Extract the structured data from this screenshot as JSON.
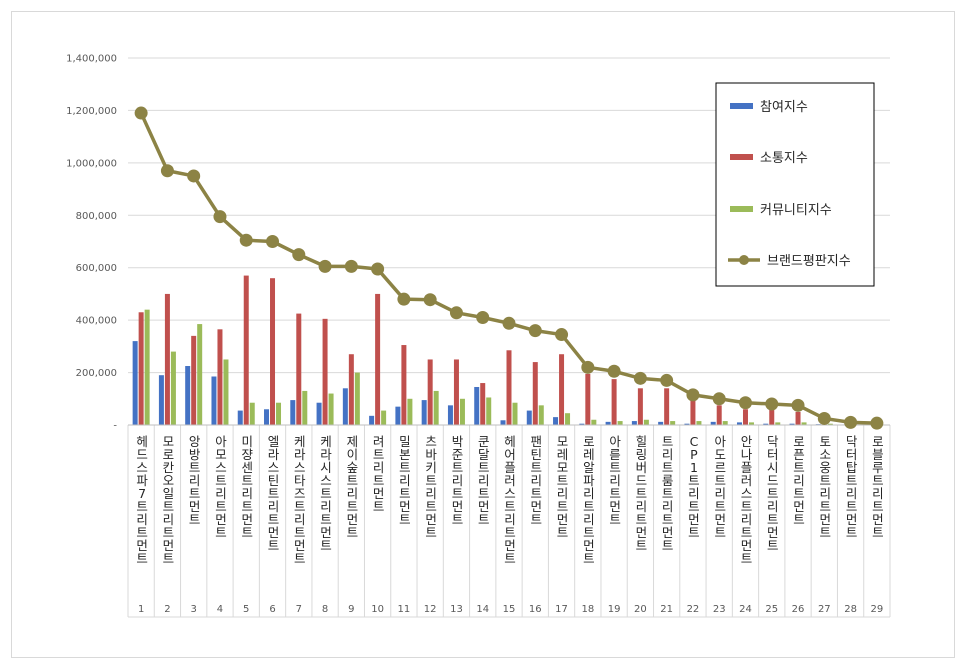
{
  "chart_data": {
    "type": "bar",
    "title": "",
    "xlabel": "",
    "ylabel": "",
    "ylim": [
      0,
      1400000
    ],
    "yticks": [
      0,
      200000,
      400000,
      600000,
      800000,
      1000000,
      1200000,
      1400000
    ],
    "ytick_labels": [
      "-",
      "200,000",
      "400,000",
      "600,000",
      "800,000",
      "1,000,000",
      "1,200,000",
      "1,400,000"
    ],
    "grid": true,
    "legend_position": "top-right",
    "ranks": [
      "1",
      "2",
      "3",
      "4",
      "5",
      "6",
      "7",
      "8",
      "9",
      "10",
      "11",
      "12",
      "13",
      "14",
      "15",
      "16",
      "17",
      "18",
      "19",
      "20",
      "21",
      "22",
      "23",
      "24",
      "25",
      "26",
      "27",
      "28",
      "29"
    ],
    "categories": [
      "헤드스파7트리트먼트",
      "모로칸오일트리트먼트",
      "앙방트리트먼트",
      "아모스트리트먼트",
      "미쟝센트리트먼트",
      "엘라스틴트리트먼트",
      "케라스타즈트리트먼트",
      "케라시스트리트먼트",
      "제이숲트리트먼트",
      "려트리트먼트",
      "밀본트리트먼트",
      "츠바키트리트먼트",
      "박준트리트먼트",
      "쿤달트리트먼트",
      "헤어플러스트리트먼트",
      "팬틴트리트먼트",
      "모레모트리트먼트",
      "로레알파리트리트먼트",
      "아륻트리트먼트",
      "힐링버드트리트먼트",
      "트리트룸트리트먼트",
      "CP1트리트먼트",
      "아도르트리트먼트",
      "안나플러스트리트먼트",
      "닥터시드트리트먼트",
      "로픈트리트먼트",
      "토소웅트리트먼트",
      "닥터탑트리트먼트",
      "로블루트리트먼트"
    ],
    "series": [
      {
        "name": "참여지수",
        "type": "bar",
        "color": "#4472c4",
        "values": [
          320000,
          190000,
          225000,
          185000,
          55000,
          60000,
          95000,
          85000,
          140000,
          35000,
          70000,
          95000,
          75000,
          145000,
          18000,
          55000,
          30000,
          5000,
          12000,
          15000,
          12000,
          5000,
          12000,
          10000,
          5000,
          5000,
          3000,
          2000,
          1000
        ]
      },
      {
        "name": "소통지수",
        "type": "bar",
        "color": "#c0504d",
        "values": [
          430000,
          500000,
          340000,
          365000,
          570000,
          560000,
          425000,
          405000,
          270000,
          500000,
          305000,
          250000,
          250000,
          160000,
          285000,
          240000,
          270000,
          195000,
          175000,
          140000,
          140000,
          100000,
          75000,
          60000,
          60000,
          50000,
          20000,
          8000,
          5000
        ]
      },
      {
        "name": "커뮤니티지수",
        "type": "bar",
        "color": "#9bbb59",
        "values": [
          440000,
          280000,
          385000,
          250000,
          85000,
          85000,
          130000,
          120000,
          200000,
          55000,
          100000,
          130000,
          100000,
          105000,
          85000,
          75000,
          45000,
          20000,
          15000,
          20000,
          15000,
          15000,
          15000,
          10000,
          10000,
          10000,
          5000,
          2000,
          1000
        ]
      },
      {
        "name": "브랜드평판지수",
        "type": "line",
        "color": "#8c8345",
        "values": [
          1190000,
          970000,
          950000,
          795000,
          705000,
          700000,
          650000,
          605000,
          605000,
          595000,
          480000,
          478000,
          428000,
          410000,
          388000,
          360000,
          345000,
          220000,
          205000,
          178000,
          170000,
          115000,
          100000,
          85000,
          80000,
          75000,
          25000,
          10000,
          7000
        ]
      }
    ]
  }
}
